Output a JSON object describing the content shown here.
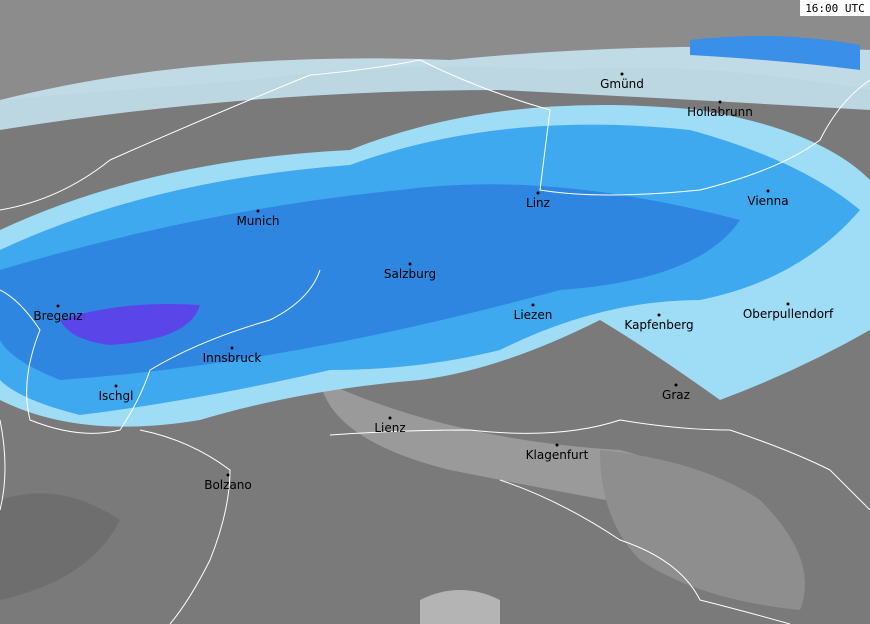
{
  "timestamp": "16:00 UTC",
  "cities": [
    {
      "label": "Gmünd"
    },
    {
      "label": "Hollabrunn"
    },
    {
      "label": "Linz"
    },
    {
      "label": "Vienna"
    },
    {
      "label": "Munich"
    },
    {
      "label": "Salzburg"
    },
    {
      "label": "Bregenz"
    },
    {
      "label": "Liezen"
    },
    {
      "label": "Kapfenberg"
    },
    {
      "label": "Oberpullendorf"
    },
    {
      "label": "Innsbruck"
    },
    {
      "label": "Ischgl"
    },
    {
      "label": "Graz"
    },
    {
      "label": "Lienz"
    },
    {
      "label": "Klagenfurt"
    },
    {
      "label": "Bolzano"
    }
  ]
}
